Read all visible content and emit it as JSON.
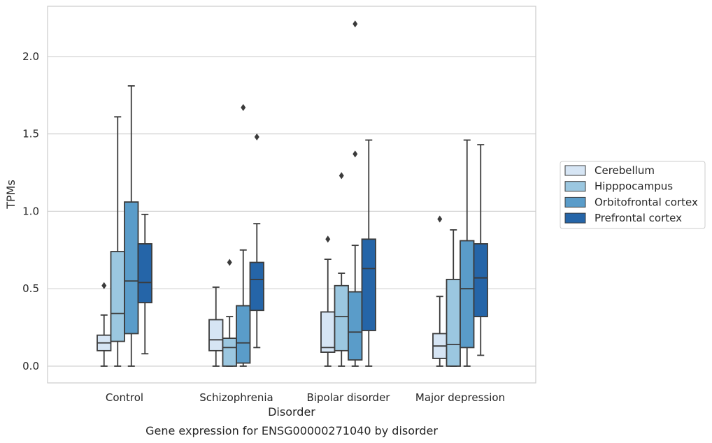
{
  "chart_data": {
    "type": "box",
    "title": "",
    "caption": "Gene expression for ENSG00000271040 by disorder",
    "xlabel": "Disorder",
    "ylabel": "TPMs",
    "ylim": [
      -0.105,
      2.33
    ],
    "yticks": [
      "0.0",
      "0.5",
      "1.0",
      "1.5",
      "2.0"
    ],
    "grid": "horizontal",
    "legend_position": "center-right",
    "categories": [
      "Control",
      "Schizophrenia",
      "Bipolar disorder",
      "Major depression"
    ],
    "series": [
      {
        "name": "Cerebellum",
        "color": "#d6e5f4",
        "boxes": [
          {
            "whisker_low": 0.0,
            "q1": 0.1,
            "median": 0.15,
            "q3": 0.2,
            "whisker_high": 0.33,
            "outliers": [
              0.52
            ]
          },
          {
            "whisker_low": 0.0,
            "q1": 0.1,
            "median": 0.17,
            "q3": 0.3,
            "whisker_high": 0.51,
            "outliers": []
          },
          {
            "whisker_low": 0.0,
            "q1": 0.09,
            "median": 0.12,
            "q3": 0.35,
            "whisker_high": 0.69,
            "outliers": [
              0.82
            ]
          },
          {
            "whisker_low": 0.0,
            "q1": 0.05,
            "median": 0.13,
            "q3": 0.21,
            "whisker_high": 0.45,
            "outliers": [
              0.95
            ]
          }
        ]
      },
      {
        "name": "Hipppocampus",
        "color": "#9bc7e0",
        "boxes": [
          {
            "whisker_low": 0.0,
            "q1": 0.16,
            "median": 0.34,
            "q3": 0.74,
            "whisker_high": 1.61,
            "outliers": []
          },
          {
            "whisker_low": 0.0,
            "q1": 0.0,
            "median": 0.12,
            "q3": 0.18,
            "whisker_high": 0.32,
            "outliers": [
              0.67
            ]
          },
          {
            "whisker_low": 0.0,
            "q1": 0.1,
            "median": 0.32,
            "q3": 0.52,
            "whisker_high": 0.6,
            "outliers": [
              1.23
            ]
          },
          {
            "whisker_low": 0.0,
            "q1": 0.0,
            "median": 0.14,
            "q3": 0.56,
            "whisker_high": 0.88,
            "outliers": []
          }
        ]
      },
      {
        "name": "Orbitofrontal cortex",
        "color": "#5a9cc9",
        "boxes": [
          {
            "whisker_low": 0.0,
            "q1": 0.21,
            "median": 0.55,
            "q3": 1.06,
            "whisker_high": 1.81,
            "outliers": []
          },
          {
            "whisker_low": 0.0,
            "q1": 0.02,
            "median": 0.15,
            "q3": 0.39,
            "whisker_high": 0.75,
            "outliers": [
              1.67
            ]
          },
          {
            "whisker_low": 0.0,
            "q1": 0.04,
            "median": 0.22,
            "q3": 0.48,
            "whisker_high": 0.78,
            "outliers": [
              1.37,
              2.21
            ]
          },
          {
            "whisker_low": 0.0,
            "q1": 0.12,
            "median": 0.5,
            "q3": 0.81,
            "whisker_high": 1.46,
            "outliers": []
          }
        ]
      },
      {
        "name": "Prefrontal cortex",
        "color": "#2565a8",
        "boxes": [
          {
            "whisker_low": 0.08,
            "q1": 0.41,
            "median": 0.54,
            "q3": 0.79,
            "whisker_high": 0.98,
            "outliers": []
          },
          {
            "whisker_low": 0.12,
            "q1": 0.36,
            "median": 0.56,
            "q3": 0.67,
            "whisker_high": 0.92,
            "outliers": [
              1.48
            ]
          },
          {
            "whisker_low": 0.0,
            "q1": 0.23,
            "median": 0.63,
            "q3": 0.82,
            "whisker_high": 1.46,
            "outliers": []
          },
          {
            "whisker_low": 0.07,
            "q1": 0.32,
            "median": 0.57,
            "q3": 0.79,
            "whisker_high": 1.43,
            "outliers": []
          }
        ]
      }
    ],
    "colors": {
      "grid": "#d3d3d3",
      "frame": "#cccccc",
      "box_edge": "#3b3b3b",
      "text": "#262626"
    }
  }
}
